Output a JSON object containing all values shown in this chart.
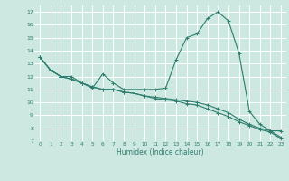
{
  "title": "",
  "xlabel": "Humidex (Indice chaleur)",
  "ylabel": "",
  "bg_color": "#cce8e0",
  "grid_color": "#ffffff",
  "line_color": "#2d7d6e",
  "xlim": [
    -0.5,
    23.5
  ],
  "ylim": [
    7,
    17.5
  ],
  "yticks": [
    7,
    8,
    9,
    10,
    11,
    12,
    13,
    14,
    15,
    16,
    17
  ],
  "xticks": [
    0,
    1,
    2,
    3,
    4,
    5,
    6,
    7,
    8,
    9,
    10,
    11,
    12,
    13,
    14,
    15,
    16,
    17,
    18,
    19,
    20,
    21,
    22,
    23
  ],
  "series": [
    {
      "x": [
        0,
        1,
        2,
        3,
        4,
        5,
        6,
        7,
        8,
        9,
        10,
        11,
        12,
        13,
        14,
        15,
        16,
        17,
        18,
        19,
        20,
        21,
        22,
        23
      ],
      "y": [
        13.5,
        12.5,
        12.0,
        12.0,
        11.5,
        11.1,
        12.2,
        11.5,
        11.0,
        11.0,
        11.0,
        11.0,
        11.1,
        13.3,
        15.0,
        15.3,
        16.5,
        17.0,
        16.3,
        13.8,
        9.3,
        8.3,
        7.8,
        7.8
      ]
    },
    {
      "x": [
        0,
        1,
        2,
        3,
        4,
        5,
        6,
        7,
        8,
        9,
        10,
        11,
        12,
        13,
        14,
        15,
        16,
        17,
        18,
        19,
        20,
        21,
        22,
        23
      ],
      "y": [
        13.5,
        12.5,
        12.0,
        11.8,
        11.5,
        11.2,
        11.0,
        11.0,
        10.8,
        10.7,
        10.5,
        10.4,
        10.3,
        10.2,
        10.1,
        10.0,
        9.8,
        9.5,
        9.2,
        8.7,
        8.3,
        8.0,
        7.8,
        7.3
      ]
    },
    {
      "x": [
        0,
        1,
        2,
        3,
        4,
        5,
        6,
        7,
        8,
        9,
        10,
        11,
        12,
        13,
        14,
        15,
        16,
        17,
        18,
        19,
        20,
        21,
        22,
        23
      ],
      "y": [
        13.5,
        12.5,
        12.0,
        11.8,
        11.5,
        11.2,
        11.0,
        11.0,
        10.8,
        10.7,
        10.5,
        10.3,
        10.2,
        10.1,
        9.9,
        9.8,
        9.5,
        9.2,
        8.9,
        8.5,
        8.2,
        7.9,
        7.7,
        7.2
      ]
    }
  ]
}
